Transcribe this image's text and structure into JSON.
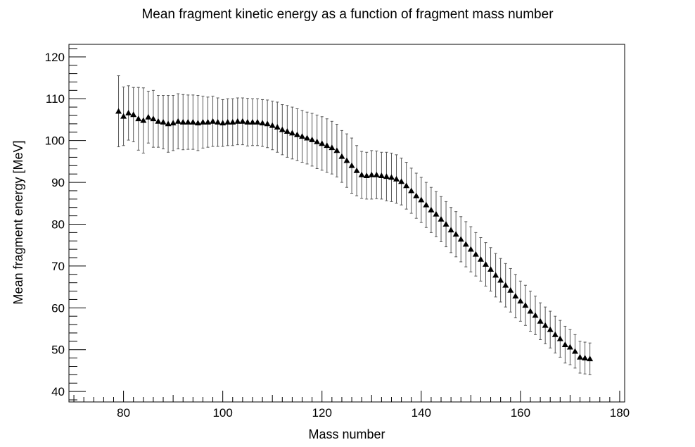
{
  "chart_data": {
    "type": "scatter",
    "title": "Mean fragment kinetic energy as a function of fragment mass number",
    "xlabel": "Mass number",
    "ylabel": "Mean fragment energy [MeV]",
    "xlim": [
      69,
      181
    ],
    "ylim": [
      37.5,
      123
    ],
    "x_ticks": [
      80,
      100,
      120,
      140,
      160,
      180
    ],
    "y_ticks": [
      40,
      50,
      60,
      70,
      80,
      90,
      100,
      110,
      120
    ],
    "grid": false,
    "marker": "triangle",
    "color": "#000000",
    "errorbar_color": "#555555",
    "series": [
      {
        "x": [
          79,
          80,
          81,
          82,
          83,
          84,
          85,
          86,
          87,
          88,
          89,
          90,
          91,
          92,
          93,
          94,
          95,
          96,
          97,
          98,
          99,
          100,
          101,
          102,
          103,
          104,
          105,
          106,
          107,
          108,
          109,
          110,
          111,
          112,
          113,
          114,
          115,
          116,
          117,
          118,
          119,
          120,
          121,
          122,
          123,
          124,
          125,
          126,
          127,
          128,
          129,
          130,
          131,
          132,
          133,
          134,
          135,
          136,
          137,
          138,
          139,
          140,
          141,
          142,
          143,
          144,
          145,
          146,
          147,
          148,
          149,
          150,
          151,
          152,
          153,
          154,
          155,
          156,
          157,
          158,
          159,
          160,
          161,
          162,
          163,
          164,
          165,
          166,
          167,
          168,
          169,
          170,
          171,
          172,
          173,
          174
        ],
        "y": [
          107.0,
          105.8,
          106.6,
          106.2,
          105.2,
          104.8,
          105.6,
          105.2,
          104.6,
          104.4,
          104.0,
          104.2,
          104.6,
          104.4,
          104.4,
          104.4,
          104.2,
          104.4,
          104.4,
          104.6,
          104.4,
          104.2,
          104.4,
          104.4,
          104.6,
          104.6,
          104.4,
          104.4,
          104.4,
          104.2,
          104.0,
          103.6,
          103.2,
          102.6,
          102.2,
          101.8,
          101.4,
          101.0,
          100.6,
          100.2,
          99.7,
          99.3,
          98.8,
          98.3,
          97.6,
          96.2,
          95.2,
          94.0,
          92.8,
          91.8,
          91.6,
          91.8,
          91.8,
          91.6,
          91.4,
          91.2,
          90.8,
          90.2,
          89.2,
          88.0,
          86.8,
          85.8,
          84.6,
          83.4,
          82.4,
          81.2,
          80.0,
          78.6,
          77.6,
          76.4,
          75.2,
          74.0,
          72.8,
          71.6,
          70.4,
          69.2,
          67.8,
          66.6,
          65.4,
          64.2,
          62.8,
          61.6,
          60.6,
          59.2,
          58.2,
          56.8,
          55.8,
          54.8,
          53.6,
          52.6,
          51.2,
          50.6,
          49.6,
          48.2,
          48.0,
          47.8
        ],
        "yerr": [
          8.5,
          7.0,
          6.5,
          6.5,
          7.5,
          7.8,
          6.2,
          6.8,
          6.2,
          6.4,
          6.8,
          6.6,
          6.6,
          6.6,
          6.5,
          6.5,
          6.6,
          6.2,
          6.0,
          6.0,
          5.8,
          5.6,
          5.6,
          5.6,
          5.6,
          5.6,
          5.7,
          5.6,
          5.6,
          5.6,
          5.7,
          5.8,
          6.0,
          6.0,
          6.2,
          6.2,
          6.2,
          6.2,
          6.2,
          6.3,
          6.4,
          6.4,
          6.4,
          6.3,
          6.3,
          6.2,
          6.4,
          6.6,
          6.0,
          5.6,
          5.6,
          5.8,
          5.7,
          5.6,
          5.8,
          5.8,
          5.8,
          5.6,
          5.6,
          5.4,
          5.4,
          5.4,
          5.4,
          5.4,
          5.4,
          5.4,
          5.4,
          5.4,
          5.4,
          5.4,
          5.4,
          5.4,
          5.2,
          5.2,
          5.2,
          5.2,
          5.2,
          5.2,
          5.2,
          5.2,
          5.2,
          4.8,
          4.8,
          4.8,
          4.6,
          4.4,
          4.4,
          4.4,
          4.4,
          4.4,
          4.4,
          4.2,
          4.0,
          3.8,
          3.8,
          3.8
        ]
      }
    ]
  }
}
